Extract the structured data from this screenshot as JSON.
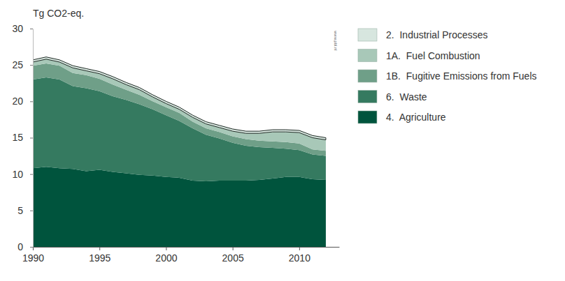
{
  "chart_data": {
    "type": "area",
    "stacked": true,
    "y_label": "Tg CO2-eq.",
    "annotation": "www.pbl.nl",
    "x": [
      1990,
      1991,
      1992,
      1993,
      1994,
      1995,
      1996,
      1997,
      1998,
      1999,
      2000,
      2001,
      2002,
      2003,
      2004,
      2005,
      2006,
      2007,
      2008,
      2009,
      2010,
      2011,
      2012
    ],
    "xlim": [
      1990,
      2013
    ],
    "xticks": [
      1990,
      1995,
      2000,
      2005,
      2010
    ],
    "ylim": [
      0,
      30
    ],
    "yticks": [
      0,
      5,
      10,
      15,
      20,
      25,
      30
    ],
    "grid": false,
    "legend": "right",
    "series": [
      {
        "name": "4.  Agriculture",
        "color": "#00543d",
        "values": [
          10.8,
          11.0,
          10.8,
          10.7,
          10.4,
          10.6,
          10.3,
          10.1,
          9.9,
          9.8,
          9.6,
          9.5,
          9.1,
          9.0,
          9.1,
          9.1,
          9.1,
          9.2,
          9.4,
          9.6,
          9.6,
          9.3,
          9.2
        ]
      },
      {
        "name": "6.  Waste",
        "color": "#357a60",
        "values": [
          12.2,
          12.3,
          12.2,
          11.4,
          11.4,
          10.8,
          10.4,
          10.1,
          9.7,
          9.1,
          8.5,
          7.8,
          7.2,
          6.4,
          5.8,
          5.2,
          4.8,
          4.5,
          4.2,
          3.9,
          3.7,
          3.4,
          3.3
        ]
      },
      {
        "name": "1B.  Fugitive Emissions from Fuels",
        "color": "#6f9f88",
        "values": [
          1.9,
          1.9,
          1.9,
          1.8,
          1.8,
          1.7,
          1.6,
          1.4,
          1.3,
          1.1,
          1.1,
          1.1,
          0.9,
          0.9,
          0.9,
          0.9,
          0.9,
          0.9,
          0.9,
          0.9,
          0.9,
          0.7,
          0.7
        ]
      },
      {
        "name": "1A.  Fuel Combustion",
        "color": "#a8c8b8",
        "values": [
          0.5,
          0.6,
          0.5,
          0.7,
          0.6,
          0.7,
          0.8,
          0.7,
          0.7,
          0.6,
          0.5,
          0.5,
          0.6,
          0.6,
          0.6,
          0.7,
          0.8,
          1.0,
          1.3,
          1.4,
          1.5,
          1.6,
          1.5
        ]
      },
      {
        "name": "2.  Industrial Processes",
        "color": "#d7e6df",
        "values": [
          0.3,
          0.3,
          0.3,
          0.3,
          0.3,
          0.3,
          0.3,
          0.3,
          0.3,
          0.3,
          0.3,
          0.3,
          0.3,
          0.3,
          0.3,
          0.3,
          0.3,
          0.3,
          0.3,
          0.3,
          0.3,
          0.3,
          0.3
        ]
      }
    ]
  }
}
